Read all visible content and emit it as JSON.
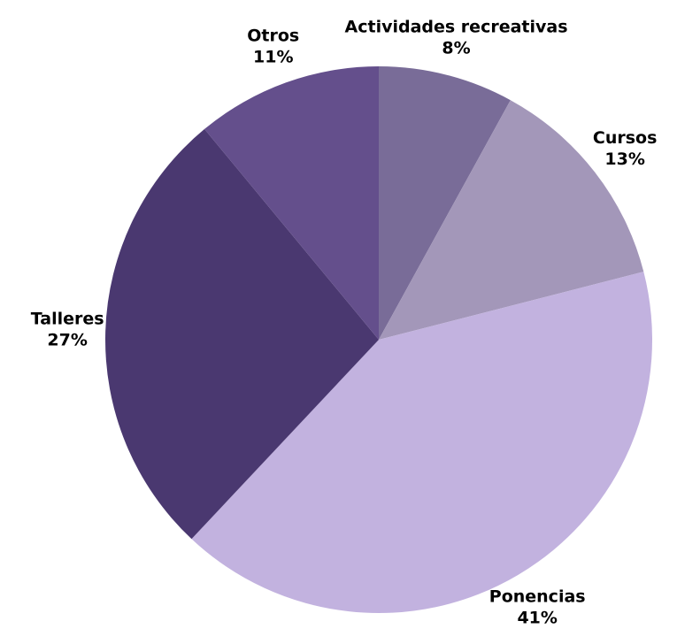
{
  "chart_data": {
    "type": "pie",
    "categories": [
      "Actividades recreativas",
      "Cursos",
      "Ponencias",
      "Talleres",
      "Otros"
    ],
    "values": [
      8,
      13,
      41,
      27,
      11
    ],
    "value_labels": [
      "8%",
      "13%",
      "41%",
      "27%",
      "11%"
    ],
    "colors": [
      "#796c98",
      "#a397b9",
      "#c2b2df",
      "#4a3870",
      "#644f8c"
    ]
  }
}
